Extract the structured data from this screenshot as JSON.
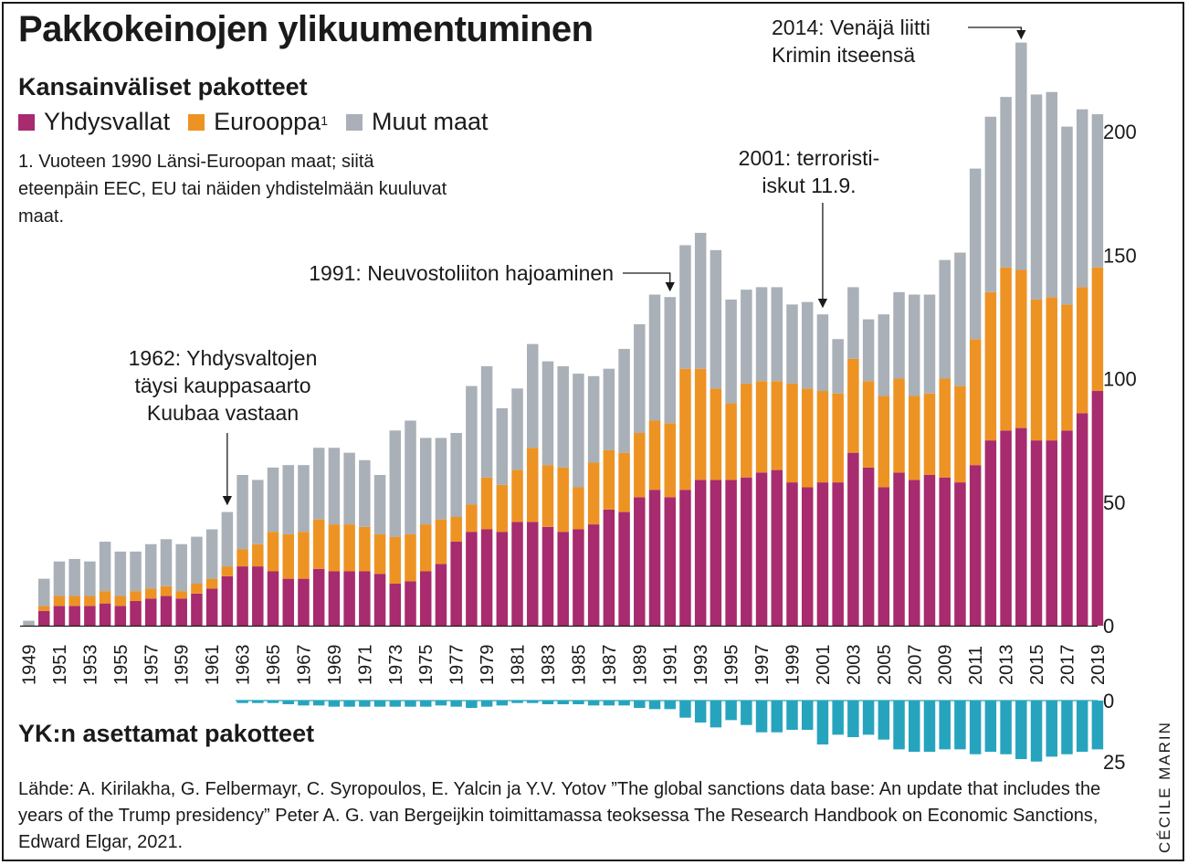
{
  "title": "Pakkokeinojen ylikuumentuminen",
  "subtitle": "Kansainväliset pakotteet",
  "legend": [
    {
      "label": "Yhdysvallat",
      "sup": "",
      "color": "#a72b6e"
    },
    {
      "label": "Eurooppa",
      "sup": "1",
      "color": "#ed9324"
    },
    {
      "label": "Muut maat",
      "sup": "",
      "color": "#a9b0b8"
    }
  ],
  "footnote": "1. Vuoteen 1990 Länsi-Euroopan maat; siitä eteenpäin EEC, EU tai näiden yhdistelmään kuuluvat maat.",
  "un_title": "YK:n asettamat pakotteet",
  "source": "Lähde: A. Kirilakha, G. Felbermayr, C. Syropoulos, E. Yalcin ja Y.V. Yotov ”The global sanctions data base: An update that includes the years of the Trump presidency” Peter A. G. van Bergeijkin toimittamassa teoksessa The Research Handbook on Economic Sanctions, Edward Elgar, 2021.",
  "credit": "CÉCILE MARIN",
  "annotations": [
    {
      "year": 1962,
      "lines": [
        "1962: Yhdysvaltojen",
        "täysi kauppasaarto",
        "Kuubaa vastaan"
      ]
    },
    {
      "year": 1991,
      "lines": [
        "1991: Neuvostoliiton hajoaminen"
      ]
    },
    {
      "year": 2001,
      "lines": [
        "2001: terroristi-",
        "iskut 11.9."
      ]
    },
    {
      "year": 2014,
      "lines": [
        "2014: Venäjä liitti",
        "Krimin itseensä"
      ]
    }
  ],
  "chart_data": [
    {
      "type": "bar",
      "stacked": true,
      "title": "Kansainväliset pakotteet",
      "years": [
        1949,
        1950,
        1951,
        1952,
        1953,
        1954,
        1955,
        1956,
        1957,
        1958,
        1959,
        1960,
        1961,
        1962,
        1963,
        1964,
        1965,
        1966,
        1967,
        1968,
        1969,
        1970,
        1971,
        1972,
        1973,
        1974,
        1975,
        1976,
        1977,
        1978,
        1979,
        1980,
        1981,
        1982,
        1983,
        1984,
        1985,
        1986,
        1987,
        1988,
        1989,
        1990,
        1991,
        1992,
        1993,
        1994,
        1995,
        1996,
        1997,
        1998,
        1999,
        2000,
        2001,
        2002,
        2003,
        2004,
        2005,
        2006,
        2007,
        2008,
        2009,
        2010,
        2011,
        2012,
        2013,
        2014,
        2015,
        2016,
        2017,
        2018,
        2019
      ],
      "x_tick_labels": [
        "1949",
        "1951",
        "1953",
        "1955",
        "1957",
        "1959",
        "1961",
        "1963",
        "1965",
        "1967",
        "1969",
        "1971",
        "1973",
        "1975",
        "1977",
        "1979",
        "1981",
        "1983",
        "1985",
        "1987",
        "1989",
        "1991",
        "1993",
        "1995",
        "1997",
        "1999",
        "2001",
        "2003",
        "2005",
        "2007",
        "2009",
        "2011",
        "2013",
        "2015",
        "2017",
        "2019"
      ],
      "series": [
        {
          "name": "Yhdysvallat",
          "color": "#a72b6e",
          "values": [
            0,
            6,
            8,
            8,
            8,
            9,
            8,
            10,
            11,
            12,
            11,
            13,
            15,
            20,
            24,
            24,
            22,
            19,
            19,
            23,
            22,
            22,
            22,
            21,
            17,
            18,
            22,
            25,
            34,
            38,
            39,
            38,
            42,
            42,
            40,
            38,
            39,
            41,
            47,
            46,
            52,
            55,
            52,
            55,
            59,
            59,
            59,
            60,
            62,
            63,
            58,
            56,
            58,
            58,
            70,
            64,
            56,
            62,
            59,
            61,
            60,
            58,
            65,
            75,
            79,
            80,
            75,
            75,
            79,
            86,
            95
          ]
        },
        {
          "name": "Eurooppa",
          "color": "#ed9324",
          "values": [
            0,
            2,
            4,
            4,
            4,
            5,
            4,
            4,
            4,
            4,
            3,
            4,
            4,
            4,
            7,
            9,
            16,
            18,
            19,
            20,
            19,
            19,
            18,
            16,
            19,
            19,
            19,
            18,
            10,
            11,
            21,
            19,
            21,
            30,
            25,
            26,
            17,
            25,
            24,
            24,
            26,
            28,
            30,
            49,
            45,
            37,
            31,
            38,
            37,
            36,
            40,
            40,
            37,
            36,
            38,
            35,
            37,
            38,
            34,
            33,
            40,
            39,
            51,
            60,
            66,
            64,
            57,
            58,
            51,
            51,
            50
          ]
        },
        {
          "name": "Muut maat",
          "color": "#a9b0b8",
          "values": [
            2,
            11,
            14,
            15,
            14,
            20,
            18,
            16,
            18,
            19,
            19,
            19,
            20,
            22,
            30,
            26,
            26,
            28,
            27,
            29,
            31,
            29,
            27,
            24,
            43,
            46,
            35,
            33,
            34,
            48,
            45,
            31,
            33,
            42,
            42,
            41,
            46,
            35,
            33,
            42,
            44,
            51,
            51,
            50,
            55,
            56,
            42,
            38,
            38,
            38,
            32,
            35,
            31,
            22,
            29,
            25,
            33,
            35,
            41,
            40,
            48,
            54,
            69,
            71,
            69,
            92,
            83,
            83,
            72,
            72,
            62
          ]
        }
      ],
      "ylim": [
        0,
        230
      ],
      "yticks": [
        0,
        50,
        100,
        150,
        200
      ]
    },
    {
      "type": "bar",
      "title": "YK:n asettamat pakotteet",
      "years": [
        1963,
        1964,
        1965,
        1966,
        1967,
        1968,
        1969,
        1970,
        1971,
        1972,
        1973,
        1974,
        1975,
        1976,
        1977,
        1978,
        1979,
        1980,
        1981,
        1982,
        1983,
        1984,
        1985,
        1986,
        1987,
        1988,
        1989,
        1990,
        1991,
        1992,
        1993,
        1994,
        1995,
        1996,
        1997,
        1998,
        1999,
        2000,
        2001,
        2002,
        2003,
        2004,
        2005,
        2006,
        2007,
        2008,
        2009,
        2010,
        2011,
        2012,
        2013,
        2014,
        2015,
        2016,
        2017,
        2018,
        2019
      ],
      "values": [
        1,
        1,
        1,
        1.5,
        2,
        2,
        2.5,
        2.5,
        2.5,
        2.5,
        2.5,
        2.5,
        2.5,
        2,
        2.5,
        3,
        2.5,
        2,
        1,
        1,
        1.5,
        1.5,
        1.5,
        2,
        2,
        2,
        3,
        3.5,
        3.5,
        7,
        9,
        11,
        8,
        10,
        13,
        13,
        12,
        12,
        18,
        14,
        15,
        14,
        16,
        20,
        21,
        21,
        20,
        20,
        22,
        21,
        22,
        24,
        25,
        23,
        22,
        21,
        20
      ],
      "inverted": true,
      "yticks": [
        0,
        25
      ]
    }
  ]
}
